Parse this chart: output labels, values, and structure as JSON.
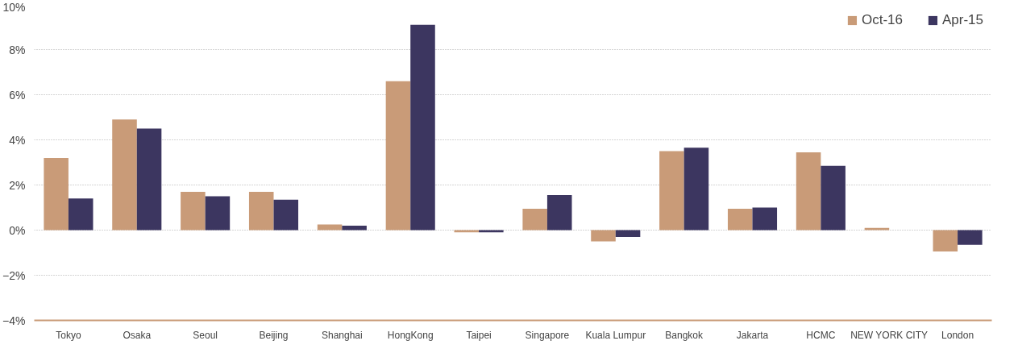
{
  "chart_data": {
    "type": "bar",
    "categories": [
      "Tokyo",
      "Osaka",
      "Seoul",
      "Beijing",
      "Shanghai",
      "HongKong",
      "Taipei",
      "Singapore",
      "Kuala Lumpur",
      "Bangkok",
      "Jakarta",
      "HCMC",
      "NEW YORK CITY",
      "London"
    ],
    "series": [
      {
        "name": "Oct-16",
        "color": "#c99b78",
        "values": [
          3.2,
          4.9,
          1.7,
          1.7,
          0.25,
          6.6,
          -0.1,
          0.95,
          -0.5,
          3.5,
          0.95,
          3.45,
          0.1,
          -0.95
        ]
      },
      {
        "name": "Apr-15",
        "color": "#3c3660",
        "values": [
          1.4,
          4.5,
          1.5,
          1.35,
          0.2,
          9.1,
          -0.1,
          1.55,
          -0.3,
          3.65,
          1.0,
          2.85,
          null,
          -0.65
        ]
      }
    ],
    "ylim": [
      -4,
      10
    ],
    "yticks": [
      {
        "value": -4,
        "label": "−4%"
      },
      {
        "value": -2,
        "label": "−2%"
      },
      {
        "value": 0,
        "label": "0%"
      },
      {
        "value": 2,
        "label": "2%"
      },
      {
        "value": 4,
        "label": "4%"
      },
      {
        "value": 6,
        "label": "6%"
      },
      {
        "value": 8,
        "label": "8%"
      },
      {
        "value": 10,
        "label": "10%"
      }
    ],
    "grid": "y",
    "legend": "top right"
  }
}
